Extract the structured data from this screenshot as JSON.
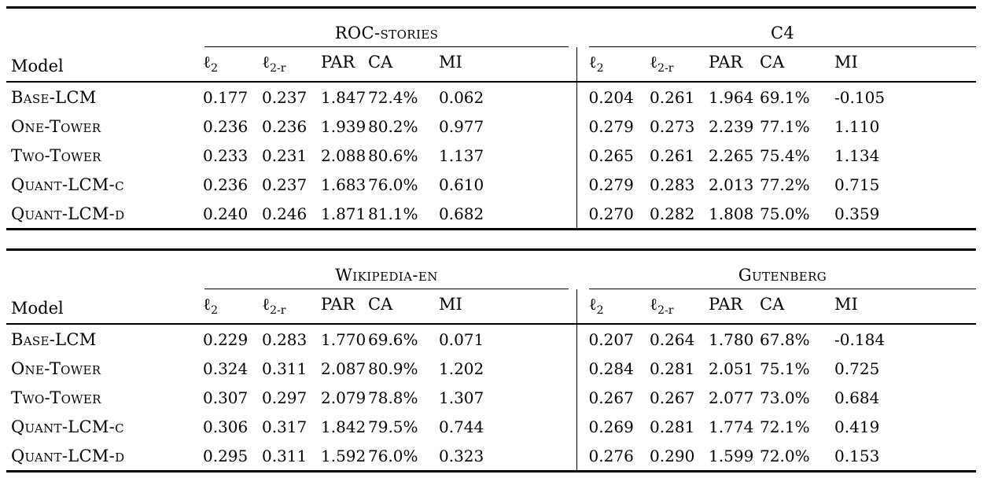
{
  "page": {
    "background_color": "#ffffff",
    "text_color": "#000000",
    "rule_color": "#000000"
  },
  "model_header": "Model",
  "metric_columns": [
    {
      "base": "ℓ",
      "sub": "2"
    },
    {
      "base": "ℓ",
      "sub": "2-r"
    },
    {
      "base": "PAR",
      "sub": ""
    },
    {
      "base": "CA",
      "sub": ""
    },
    {
      "base": "MI",
      "sub": ""
    }
  ],
  "tables": [
    {
      "group1_title": "ROC-stories",
      "group2_title": "C4",
      "rows": [
        {
          "model": "Base-LCM",
          "values": [
            "0.177",
            "0.237",
            "1.847",
            "72.4%",
            "0.062",
            "0.204",
            "0.261",
            "1.964",
            "69.1%",
            "-0.105"
          ]
        },
        {
          "model": "One-Tower",
          "values": [
            "0.236",
            "0.236",
            "1.939",
            "80.2%",
            "0.977",
            "0.279",
            "0.273",
            "2.239",
            "77.1%",
            "1.110"
          ]
        },
        {
          "model": "Two-Tower",
          "values": [
            "0.233",
            "0.231",
            "2.088",
            "80.6%",
            "1.137",
            "0.265",
            "0.261",
            "2.265",
            "75.4%",
            "1.134"
          ]
        },
        {
          "model": "Quant-LCM-c",
          "values": [
            "0.236",
            "0.237",
            "1.683",
            "76.0%",
            "0.610",
            "0.279",
            "0.283",
            "2.013",
            "77.2%",
            "0.715"
          ]
        },
        {
          "model": "Quant-LCM-d",
          "values": [
            "0.240",
            "0.246",
            "1.871",
            "81.1%",
            "0.682",
            "0.270",
            "0.282",
            "1.808",
            "75.0%",
            "0.359"
          ]
        }
      ]
    },
    {
      "group1_title": "Wikipedia-en",
      "group2_title": "Gutenberg",
      "rows": [
        {
          "model": "Base-LCM",
          "values": [
            "0.229",
            "0.283",
            "1.770",
            "69.6%",
            "0.071",
            "0.207",
            "0.264",
            "1.780",
            "67.8%",
            "-0.184"
          ]
        },
        {
          "model": "One-Tower",
          "values": [
            "0.324",
            "0.311",
            "2.087",
            "80.9%",
            "1.202",
            "0.284",
            "0.281",
            "2.051",
            "75.1%",
            "0.725"
          ]
        },
        {
          "model": "Two-Tower",
          "values": [
            "0.307",
            "0.297",
            "2.079",
            "78.8%",
            "1.307",
            "0.267",
            "0.267",
            "2.077",
            "73.0%",
            "0.684"
          ]
        },
        {
          "model": "Quant-LCM-c",
          "values": [
            "0.306",
            "0.317",
            "1.842",
            "79.5%",
            "0.744",
            "0.269",
            "0.281",
            "1.774",
            "72.1%",
            "0.419"
          ]
        },
        {
          "model": "Quant-LCM-d",
          "values": [
            "0.295",
            "0.311",
            "1.592",
            "76.0%",
            "0.323",
            "0.276",
            "0.290",
            "1.599",
            "72.0%",
            "0.153"
          ]
        }
      ]
    }
  ]
}
